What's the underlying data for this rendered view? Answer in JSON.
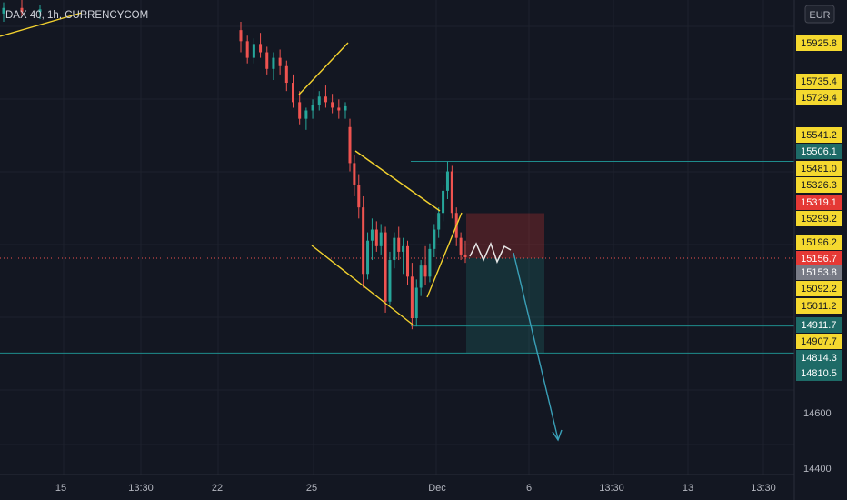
{
  "header": {
    "symbol_title": "DAX 40, 1h, CURRENCYCOM",
    "currency_label": "EUR"
  },
  "colors": {
    "background": "#131722",
    "grid": "#1e222d",
    "up_candle": "#26a69a",
    "down_candle": "#ef5350",
    "pattern_lines": "#f2d12e",
    "level_lines": "#1e8c8c",
    "stop_zone": "#e5393540",
    "target_zone": "#26a69a2e",
    "projection_arrow": "#3aa0b8",
    "current_price_line": "#ef5350",
    "axis_text": "#b2b5be"
  },
  "chart_data": {
    "type": "candlestick",
    "instrument": "DAX 40",
    "timeframe": "1h",
    "currency": "EUR",
    "y_ticks_visible": [
      14400.0,
      14600.0
    ],
    "x_tick_labels": [
      "15",
      "13:30",
      "22",
      "25",
      "Dec",
      "6",
      "13:30",
      "13",
      "13:30"
    ],
    "price_tags": [
      {
        "value": "15925.8",
        "style": "yellow"
      },
      {
        "value": "15735.4",
        "style": "yellow"
      },
      {
        "value": "15729.4",
        "style": "yellow"
      },
      {
        "value": "15541.2",
        "style": "yellow"
      },
      {
        "value": "15506.1",
        "style": "teal"
      },
      {
        "value": "15481.0",
        "style": "yellow"
      },
      {
        "value": "15326.3",
        "style": "yellow"
      },
      {
        "value": "15319.1",
        "style": "red"
      },
      {
        "value": "15299.2",
        "style": "yellow"
      },
      {
        "value": "15196.2",
        "style": "yellow"
      },
      {
        "value": "15156.7",
        "style": "red"
      },
      {
        "value": "15153.8",
        "style": "gray"
      },
      {
        "value": "15092.2",
        "style": "yellow"
      },
      {
        "value": "15011.2",
        "style": "yellow"
      },
      {
        "value": "14911.7",
        "style": "teal"
      },
      {
        "value": "14907.7",
        "style": "yellow"
      },
      {
        "value": "14814.3",
        "style": "teal"
      },
      {
        "value": "14810.5",
        "style": "teal"
      }
    ],
    "horizontal_levels": [
      15506.1,
      14911.7,
      14814.3
    ],
    "current_price": 15156.7,
    "trade_position": {
      "type": "short",
      "entry": 15156.7,
      "stop": 15319.1,
      "target": 14814.3
    },
    "candles": [
      [
        16040,
        16080,
        16010,
        16060
      ],
      [
        16060,
        16090,
        16030,
        16045
      ],
      [
        16045,
        16070,
        16020,
        16055
      ],
      [
        15980,
        16010,
        15900,
        15940
      ],
      [
        15940,
        15960,
        15860,
        15880
      ],
      [
        15880,
        15950,
        15860,
        15930
      ],
      [
        15930,
        15970,
        15880,
        15900
      ],
      [
        15900,
        15920,
        15820,
        15840
      ],
      [
        15840,
        15900,
        15800,
        15880
      ],
      [
        15880,
        15910,
        15820,
        15850
      ],
      [
        15850,
        15870,
        15760,
        15790
      ],
      [
        15790,
        15820,
        15700,
        15720
      ],
      [
        15720,
        15760,
        15640,
        15660
      ],
      [
        15660,
        15700,
        15620,
        15690
      ],
      [
        15690,
        15730,
        15660,
        15710
      ],
      [
        15710,
        15760,
        15690,
        15740
      ],
      [
        15740,
        15780,
        15700,
        15720
      ],
      [
        15720,
        15750,
        15680,
        15700
      ],
      [
        15700,
        15730,
        15660,
        15690
      ],
      [
        15690,
        15720,
        15660,
        15705
      ],
      [
        15630,
        15660,
        15470,
        15500
      ],
      [
        15500,
        15530,
        15380,
        15420
      ],
      [
        15420,
        15460,
        15300,
        15340
      ],
      [
        15340,
        15380,
        15050,
        15100
      ],
      [
        15100,
        15250,
        15080,
        15220
      ],
      [
        15220,
        15300,
        15150,
        15260
      ],
      [
        15260,
        15290,
        15180,
        15200
      ],
      [
        15200,
        15280,
        15170,
        15250
      ],
      [
        15250,
        15270,
        14960,
        15000
      ],
      [
        15000,
        15180,
        14990,
        15150
      ],
      [
        15150,
        15250,
        15120,
        15230
      ],
      [
        15230,
        15270,
        15150,
        15180
      ],
      [
        15180,
        15230,
        15100,
        15200
      ],
      [
        15200,
        15220,
        15060,
        15090
      ],
      [
        15090,
        15140,
        14900,
        14940
      ],
      [
        14940,
        15080,
        14910,
        15050
      ],
      [
        15050,
        15150,
        15020,
        15130
      ],
      [
        15130,
        15200,
        15060,
        15090
      ],
      [
        15090,
        15210,
        15070,
        15190
      ],
      [
        15190,
        15280,
        15160,
        15260
      ],
      [
        15260,
        15340,
        15230,
        15320
      ],
      [
        15320,
        15420,
        15290,
        15400
      ],
      [
        15400,
        15506,
        15370,
        15470
      ],
      [
        15470,
        15490,
        15300,
        15320
      ],
      [
        15320,
        15340,
        15200,
        15230
      ],
      [
        15230,
        15250,
        15150,
        15170
      ],
      [
        15170,
        15220,
        15140,
        15160
      ]
    ]
  }
}
